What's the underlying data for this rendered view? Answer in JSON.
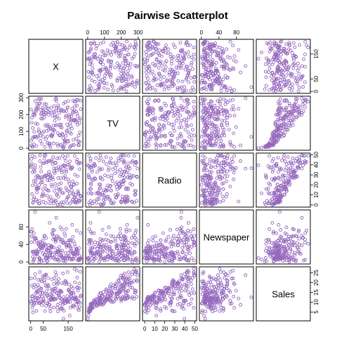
{
  "chart_data": {
    "type": "scatter-matrix",
    "title": "Pairwise Scatterplot",
    "point_color": "#9467bd",
    "grid": false,
    "variables": [
      {
        "name": "X",
        "range": [
          1,
          200
        ],
        "ticks": [
          0,
          50,
          150
        ],
        "tick_labels": [
          "0",
          "50",
          "150"
        ]
      },
      {
        "name": "TV",
        "range": [
          0.7,
          296.4
        ],
        "ticks": [
          0,
          100,
          200,
          300
        ],
        "tick_labels": [
          "0",
          "100",
          "200",
          "300"
        ]
      },
      {
        "name": "Radio",
        "range": [
          0,
          49.6
        ],
        "ticks": [
          0,
          10,
          20,
          30,
          40,
          50
        ],
        "tick_labels": [
          "0",
          "10",
          "20",
          "30",
          "40",
          "50"
        ]
      },
      {
        "name": "Newspaper",
        "range": [
          0.3,
          114
        ],
        "ticks": [
          0,
          40,
          80
        ],
        "tick_labels": [
          "0",
          "40",
          "80"
        ]
      },
      {
        "name": "Sales",
        "range": [
          1.6,
          27
        ],
        "ticks": [
          5,
          10,
          15,
          20,
          25
        ],
        "tick_labels": [
          "5",
          "10",
          "15",
          "20",
          "25"
        ]
      }
    ],
    "axis_placement": {
      "top": [
        1,
        3
      ],
      "bottom": [
        0,
        2
      ],
      "left": [
        1,
        3
      ],
      "right": [
        0,
        2,
        4
      ]
    },
    "observations": [
      [
        1,
        230.1,
        37.8,
        69.2,
        22.1
      ],
      [
        2,
        44.5,
        39.3,
        45.1,
        10.4
      ],
      [
        3,
        17.2,
        45.9,
        69.3,
        9.3
      ],
      [
        4,
        151.5,
        41.3,
        58.5,
        18.5
      ],
      [
        5,
        180.8,
        10.8,
        58.4,
        12.9
      ],
      [
        6,
        8.7,
        48.9,
        75,
        7.2
      ],
      [
        7,
        57.5,
        32.8,
        23.5,
        11.8
      ],
      [
        8,
        120.2,
        19.6,
        11.6,
        13.2
      ],
      [
        9,
        8.6,
        2.1,
        1,
        4.8
      ],
      [
        10,
        199.8,
        2.6,
        21.2,
        10.6
      ],
      [
        11,
        66.1,
        5.8,
        24.2,
        8.6
      ],
      [
        12,
        214.7,
        24,
        4,
        17.4
      ],
      [
        13,
        23.8,
        35.1,
        65.9,
        9.2
      ],
      [
        14,
        97.5,
        7.6,
        7.2,
        9.7
      ],
      [
        15,
        204.1,
        32.9,
        46,
        19
      ],
      [
        16,
        195.4,
        47.7,
        52.9,
        22.4
      ],
      [
        17,
        67.8,
        36.6,
        114,
        12.5
      ],
      [
        18,
        281.4,
        39.6,
        55.8,
        24.4
      ],
      [
        19,
        69.2,
        20.5,
        18.3,
        11.3
      ],
      [
        20,
        147.3,
        23.9,
        19.1,
        14.6
      ],
      [
        21,
        218.4,
        27.7,
        53.4,
        18
      ],
      [
        22,
        237.4,
        5.1,
        23.5,
        12.5
      ],
      [
        23,
        13.2,
        15.9,
        49.6,
        5.6
      ],
      [
        24,
        228.3,
        16.9,
        26.2,
        15.5
      ],
      [
        25,
        62.3,
        12.6,
        18.3,
        9.7
      ],
      [
        26,
        262.9,
        3.5,
        19.5,
        12
      ],
      [
        27,
        142.9,
        29.3,
        12.6,
        15
      ],
      [
        28,
        240.1,
        16.7,
        22.9,
        15.9
      ],
      [
        29,
        248.8,
        27.1,
        22.9,
        18.9
      ],
      [
        30,
        70.6,
        16,
        40.8,
        10.5
      ],
      [
        31,
        292.9,
        28.3,
        43.2,
        21.4
      ],
      [
        32,
        112.9,
        17.4,
        38.6,
        11.9
      ],
      [
        33,
        97.2,
        1.5,
        30,
        9.6
      ],
      [
        34,
        265.6,
        20,
        0.3,
        17.4
      ],
      [
        35,
        95.7,
        1.4,
        7.4,
        9.5
      ],
      [
        36,
        290.7,
        4.1,
        8.5,
        12.8
      ],
      [
        37,
        266.9,
        43.8,
        5,
        25.4
      ],
      [
        38,
        74.7,
        49.4,
        45.7,
        14.7
      ],
      [
        39,
        43.1,
        26.7,
        35.1,
        10.1
      ],
      [
        40,
        228,
        37.7,
        32,
        21.5
      ],
      [
        41,
        202.5,
        22.3,
        31.6,
        16.6
      ],
      [
        42,
        177,
        33.4,
        38.7,
        17.1
      ],
      [
        43,
        293.6,
        27.7,
        1.8,
        20.7
      ],
      [
        44,
        206.9,
        8.4,
        26.4,
        12.9
      ],
      [
        45,
        25.1,
        25.7,
        43.3,
        8.5
      ],
      [
        46,
        175.1,
        22.5,
        31.5,
        14.9
      ],
      [
        47,
        89.7,
        9.9,
        35.7,
        10.6
      ],
      [
        48,
        239.9,
        41.5,
        18.5,
        23.2
      ],
      [
        49,
        227.2,
        15.8,
        49.9,
        14.8
      ],
      [
        50,
        66.9,
        11.7,
        36.8,
        9.7
      ],
      [
        51,
        199.8,
        3.1,
        34.6,
        11.4
      ],
      [
        52,
        100.4,
        9.6,
        3.6,
        10.7
      ],
      [
        53,
        216.4,
        41.7,
        39.6,
        22.6
      ],
      [
        54,
        182.6,
        46.2,
        58.7,
        21.2
      ],
      [
        55,
        262.7,
        28.8,
        15.9,
        20.2
      ],
      [
        56,
        198.9,
        49.4,
        60,
        23.7
      ],
      [
        57,
        7.3,
        28.1,
        41.4,
        5.5
      ],
      [
        58,
        136.2,
        19.2,
        16.6,
        13.2
      ],
      [
        59,
        210.8,
        49.6,
        37.7,
        23.8
      ],
      [
        60,
        210.7,
        29.5,
        9.3,
        18.4
      ],
      [
        61,
        53.5,
        2,
        21.4,
        8.1
      ],
      [
        62,
        261.3,
        42.7,
        54.7,
        24.2
      ],
      [
        63,
        239.3,
        15.5,
        27.3,
        15.7
      ],
      [
        64,
        102.7,
        29.6,
        8.4,
        14
      ],
      [
        65,
        131.1,
        42.8,
        28.9,
        18
      ],
      [
        66,
        69,
        9.3,
        0.9,
        9.3
      ],
      [
        67,
        31.5,
        24.6,
        2.2,
        9.5
      ],
      [
        68,
        139.3,
        14.5,
        10.2,
        13.4
      ],
      [
        69,
        237.4,
        27.5,
        11,
        18.9
      ],
      [
        70,
        216.8,
        43.9,
        27.2,
        22.3
      ],
      [
        71,
        199.1,
        30.6,
        38.7,
        18.3
      ],
      [
        72,
        109.8,
        14.3,
        31.7,
        12.4
      ],
      [
        73,
        26.8,
        33,
        19.3,
        8.8
      ],
      [
        74,
        129.4,
        5.7,
        31.3,
        11
      ],
      [
        75,
        213.4,
        24.6,
        13.1,
        17
      ],
      [
        76,
        16.9,
        43.7,
        89.4,
        8.7
      ],
      [
        77,
        27.5,
        1.6,
        20.7,
        6.9
      ],
      [
        78,
        120.5,
        28.5,
        14.2,
        14.2
      ],
      [
        79,
        5.4,
        29.9,
        9.4,
        5.3
      ],
      [
        80,
        116,
        7.7,
        23.1,
        11
      ],
      [
        81,
        76.4,
        26.7,
        22.3,
        11.8
      ],
      [
        82,
        239.8,
        4.1,
        36.9,
        12.3
      ],
      [
        83,
        75.3,
        20.3,
        32.5,
        11.3
      ],
      [
        84,
        68.4,
        44.5,
        35.6,
        13.6
      ],
      [
        85,
        213.5,
        43,
        33.8,
        21.7
      ],
      [
        86,
        193.2,
        18.4,
        65.7,
        15.2
      ],
      [
        87,
        76.3,
        27.5,
        16,
        12
      ],
      [
        88,
        110.7,
        40.6,
        63.2,
        16
      ],
      [
        89,
        88.3,
        25.5,
        73.4,
        12.9
      ],
      [
        90,
        109.8,
        47.8,
        51.4,
        16.7
      ],
      [
        91,
        134.3,
        4.9,
        9.3,
        11.2
      ],
      [
        92,
        28.6,
        1.5,
        33,
        7.3
      ],
      [
        93,
        217.7,
        33.5,
        59,
        19.4
      ],
      [
        94,
        250.9,
        36.5,
        72.3,
        22.2
      ],
      [
        95,
        107.4,
        14,
        10.9,
        11.5
      ],
      [
        96,
        163.3,
        31.6,
        52.9,
        16.9
      ],
      [
        97,
        197.6,
        3.5,
        5.9,
        11.7
      ],
      [
        98,
        184.9,
        21,
        22,
        15.5
      ],
      [
        99,
        289.7,
        42.3,
        51.2,
        25.4
      ],
      [
        100,
        135.2,
        41.7,
        45.9,
        17.2
      ],
      [
        101,
        222.4,
        4.3,
        49.8,
        11.7
      ],
      [
        102,
        296.4,
        36.3,
        100.9,
        23.8
      ],
      [
        103,
        280.2,
        10.1,
        21.4,
        14.8
      ],
      [
        104,
        187.9,
        17.2,
        17.9,
        14.7
      ],
      [
        105,
        238.2,
        34.3,
        5.3,
        20.7
      ],
      [
        106,
        137.9,
        46.4,
        59,
        19.2
      ],
      [
        107,
        25,
        11,
        29.7,
        7.2
      ],
      [
        108,
        90.4,
        0.3,
        23.2,
        8.7
      ],
      [
        109,
        13.1,
        0.4,
        25.6,
        5.3
      ],
      [
        110,
        255.4,
        26.9,
        5.5,
        19.8
      ],
      [
        111,
        225.8,
        8.2,
        56.5,
        13.4
      ],
      [
        112,
        241.7,
        38,
        23.2,
        21.8
      ],
      [
        113,
        175.7,
        15.4,
        2.4,
        14.1
      ],
      [
        114,
        209.6,
        20.6,
        10.7,
        15.9
      ],
      [
        115,
        78.2,
        46.8,
        34.5,
        14.6
      ],
      [
        116,
        75.1,
        35,
        52.7,
        12.6
      ],
      [
        117,
        139.2,
        14.3,
        25.6,
        12.2
      ],
      [
        118,
        76.4,
        0.8,
        14.8,
        9.4
      ],
      [
        119,
        125.7,
        36.9,
        79.2,
        15.9
      ],
      [
        120,
        19.4,
        16,
        22.3,
        6.6
      ],
      [
        121,
        141.3,
        26.8,
        46.2,
        15.5
      ],
      [
        122,
        18.8,
        21.7,
        50.4,
        7
      ],
      [
        123,
        224,
        2.4,
        15.6,
        11.6
      ],
      [
        124,
        123.1,
        34.6,
        12.4,
        15.2
      ],
      [
        125,
        229.5,
        32.3,
        74.2,
        19.7
      ],
      [
        126,
        87.2,
        11.8,
        25.9,
        10.6
      ],
      [
        127,
        7.8,
        38.9,
        50.6,
        6.6
      ],
      [
        128,
        80.2,
        0,
        9.2,
        8.8
      ],
      [
        129,
        220.3,
        49,
        3.2,
        24.7
      ],
      [
        130,
        59.6,
        12,
        43.1,
        9.7
      ],
      [
        131,
        0.7,
        39.6,
        8.7,
        1.6
      ],
      [
        132,
        265.2,
        2.9,
        43,
        12.7
      ],
      [
        133,
        8.4,
        27.2,
        2.1,
        5.7
      ],
      [
        134,
        219.8,
        33.5,
        45.1,
        19.6
      ],
      [
        135,
        36.9,
        38.6,
        65.6,
        10.8
      ],
      [
        136,
        48.3,
        47,
        8.5,
        11.6
      ],
      [
        137,
        25.6,
        39,
        9.3,
        9.5
      ],
      [
        138,
        273.7,
        28.9,
        59.7,
        20.8
      ],
      [
        139,
        43,
        25.9,
        20.5,
        9.6
      ],
      [
        140,
        184.9,
        43.9,
        1.7,
        20.7
      ],
      [
        141,
        73.4,
        17,
        12.9,
        10.9
      ],
      [
        142,
        193.7,
        35.4,
        75.6,
        19.2
      ],
      [
        143,
        220.5,
        33.2,
        37.9,
        20.1
      ],
      [
        144,
        104.6,
        5.7,
        34.4,
        10.4
      ],
      [
        145,
        96.2,
        14.8,
        38.9,
        11.4
      ],
      [
        146,
        140.3,
        1.9,
        9,
        10.3
      ],
      [
        147,
        240.1,
        7.3,
        8.7,
        13.2
      ],
      [
        148,
        243.2,
        49,
        44.3,
        25.4
      ],
      [
        149,
        38,
        40.3,
        11.9,
        10.9
      ],
      [
        150,
        44.7,
        25.8,
        20.6,
        10.1
      ],
      [
        151,
        280.7,
        13.9,
        37,
        16.1
      ],
      [
        152,
        121,
        8.4,
        48.7,
        11.6
      ],
      [
        153,
        197.6,
        23.3,
        14.2,
        16.6
      ],
      [
        154,
        171.3,
        39.7,
        37.7,
        19
      ],
      [
        155,
        187.8,
        21.1,
        9.5,
        15.6
      ],
      [
        156,
        4.1,
        11.6,
        5.7,
        3.2
      ],
      [
        157,
        93.9,
        43.5,
        50.5,
        15.3
      ],
      [
        158,
        149.8,
        1.3,
        24.3,
        10.1
      ],
      [
        159,
        11.7,
        36.9,
        45.2,
        7.3
      ],
      [
        160,
        131.7,
        18.4,
        34.6,
        12.9
      ],
      [
        161,
        172.5,
        18.1,
        30.7,
        14.4
      ],
      [
        162,
        85.7,
        35.8,
        49.3,
        13.3
      ],
      [
        163,
        188.4,
        18.1,
        25.6,
        14.9
      ],
      [
        164,
        163.5,
        36.8,
        7.4,
        18
      ],
      [
        165,
        117.2,
        14.7,
        5.4,
        11.9
      ],
      [
        166,
        234.5,
        3.4,
        84.8,
        11.9
      ],
      [
        167,
        17.9,
        37.6,
        21.6,
        8
      ],
      [
        168,
        206.8,
        5.2,
        19.4,
        12.2
      ],
      [
        169,
        215.4,
        23.6,
        57.6,
        17.1
      ],
      [
        170,
        284.3,
        10.6,
        6.4,
        15
      ],
      [
        171,
        50,
        11.6,
        18.4,
        8.4
      ],
      [
        172,
        164.5,
        20.9,
        47.4,
        14.5
      ],
      [
        173,
        19.6,
        20.1,
        17,
        7.6
      ],
      [
        174,
        168.4,
        7.1,
        12.8,
        11.7
      ],
      [
        175,
        222.4,
        3.4,
        13.1,
        11.5
      ],
      [
        176,
        276.9,
        48.9,
        41.8,
        27
      ],
      [
        177,
        248.4,
        30.2,
        20.3,
        20.2
      ],
      [
        178,
        170.2,
        7.8,
        35.2,
        11.7
      ],
      [
        179,
        276.7,
        2.3,
        23.7,
        11.8
      ],
      [
        180,
        165.6,
        10,
        17.6,
        12.6
      ],
      [
        181,
        156.6,
        2.6,
        8.3,
        10.5
      ],
      [
        182,
        218.5,
        5.4,
        27.4,
        12.2
      ],
      [
        183,
        56.2,
        5.7,
        29.7,
        8.7
      ],
      [
        184,
        287.6,
        43,
        71.8,
        26.2
      ],
      [
        185,
        253.8,
        21.3,
        30,
        17.6
      ],
      [
        186,
        205,
        45.1,
        19.6,
        22.6
      ],
      [
        187,
        139.5,
        2.1,
        26.6,
        10.3
      ],
      [
        188,
        191.1,
        28.7,
        18.2,
        17.3
      ],
      [
        189,
        286,
        13.9,
        3.7,
        15.9
      ],
      [
        190,
        18.7,
        12.1,
        23.4,
        6.7
      ],
      [
        191,
        39.5,
        41.1,
        5.8,
        10.8
      ],
      [
        192,
        75.5,
        10.8,
        6,
        9.9
      ],
      [
        193,
        17.2,
        4.1,
        31.6,
        5.9
      ],
      [
        194,
        166.8,
        42,
        3.6,
        19.6
      ],
      [
        195,
        149.7,
        35.6,
        6,
        17.3
      ],
      [
        196,
        38.2,
        3.7,
        13.8,
        7.6
      ],
      [
        197,
        94.2,
        4.9,
        8.1,
        9.7
      ],
      [
        198,
        177,
        9.3,
        6.4,
        12.8
      ],
      [
        199,
        283.6,
        42,
        66.2,
        25.5
      ],
      [
        200,
        232.1,
        8.6,
        8.7,
        13.4
      ]
    ]
  }
}
